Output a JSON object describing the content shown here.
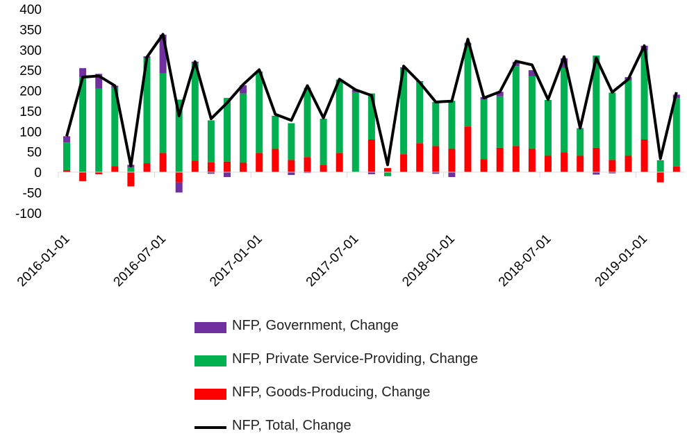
{
  "chart_data": {
    "type": "bar",
    "stacked": true,
    "ylim": [
      -100,
      400
    ],
    "yticks": [
      -100,
      -50,
      0,
      50,
      100,
      150,
      200,
      250,
      300,
      350,
      400
    ],
    "grid": false,
    "legend_position": "bottom",
    "categories": [
      "2016-01",
      "2016-02",
      "2016-03",
      "2016-04",
      "2016-05",
      "2016-06",
      "2016-07",
      "2016-08",
      "2016-09",
      "2016-10",
      "2016-11",
      "2016-12",
      "2017-01",
      "2017-02",
      "2017-03",
      "2017-04",
      "2017-05",
      "2017-06",
      "2017-07",
      "2017-08",
      "2017-09",
      "2017-10",
      "2017-11",
      "2017-12",
      "2018-01",
      "2018-02",
      "2018-03",
      "2018-04",
      "2018-05",
      "2018-06",
      "2018-07",
      "2018-08",
      "2018-09",
      "2018-10",
      "2018-11",
      "2018-12",
      "2019-01",
      "2019-02",
      "2019-03"
    ],
    "xtick_labels": [
      {
        "index": 0,
        "label": "2016-01-01"
      },
      {
        "index": 6,
        "label": "2016-07-01"
      },
      {
        "index": 12,
        "label": "2017-01-01"
      },
      {
        "index": 18,
        "label": "2017-07-01"
      },
      {
        "index": 24,
        "label": "2018-01-01"
      },
      {
        "index": 30,
        "label": "2018-07-01"
      },
      {
        "index": 36,
        "label": "2019-01-01"
      }
    ],
    "series": [
      {
        "name": "NFP, Goods-Producing, Change",
        "kind": "bar",
        "color": "#ff0000",
        "values": [
          5,
          -22,
          -5,
          15,
          -35,
          22,
          47,
          -25,
          28,
          24,
          26,
          23,
          47,
          57,
          30,
          37,
          17,
          47,
          1,
          80,
          10,
          44,
          71,
          64,
          57,
          112,
          32,
          60,
          64,
          57,
          40,
          49,
          40,
          60,
          30,
          40,
          80,
          -25,
          14
        ]
      },
      {
        "name": "NFP, Private Service-Providing, Change",
        "kind": "bar",
        "color": "#00b050",
        "values": [
          68,
          233,
          205,
          192,
          12,
          258,
          195,
          178,
          238,
          103,
          156,
          170,
          200,
          80,
          90,
          170,
          113,
          180,
          195,
          113,
          -10,
          210,
          150,
          108,
          118,
          200,
          146,
          126,
          196,
          178,
          137,
          207,
          67,
          226,
          165,
          185,
          218,
          28,
          168
        ]
      },
      {
        "name": "NFP, Government, Change",
        "kind": "bar",
        "color": "#7030a0",
        "values": [
          15,
          22,
          36,
          5,
          6,
          4,
          95,
          -25,
          5,
          -4,
          -12,
          20,
          0,
          1,
          -7,
          -2,
          1,
          0,
          6,
          -5,
          0,
          3,
          2,
          -4,
          -12,
          5,
          6,
          11,
          10,
          15,
          0,
          23,
          1,
          -6,
          -3,
          8,
          12,
          1,
          8
        ]
      },
      {
        "name": "NFP, Total, Change",
        "kind": "line",
        "color": "#000000",
        "values": [
          88,
          233,
          236,
          212,
          15,
          282,
          338,
          138,
          271,
          131,
          170,
          215,
          251,
          142,
          127,
          212,
          133,
          228,
          202,
          188,
          18,
          260,
          220,
          172,
          174,
          326,
          182,
          197,
          272,
          263,
          178,
          283,
          108,
          280,
          196,
          228,
          310,
          33,
          196
        ]
      }
    ]
  }
}
